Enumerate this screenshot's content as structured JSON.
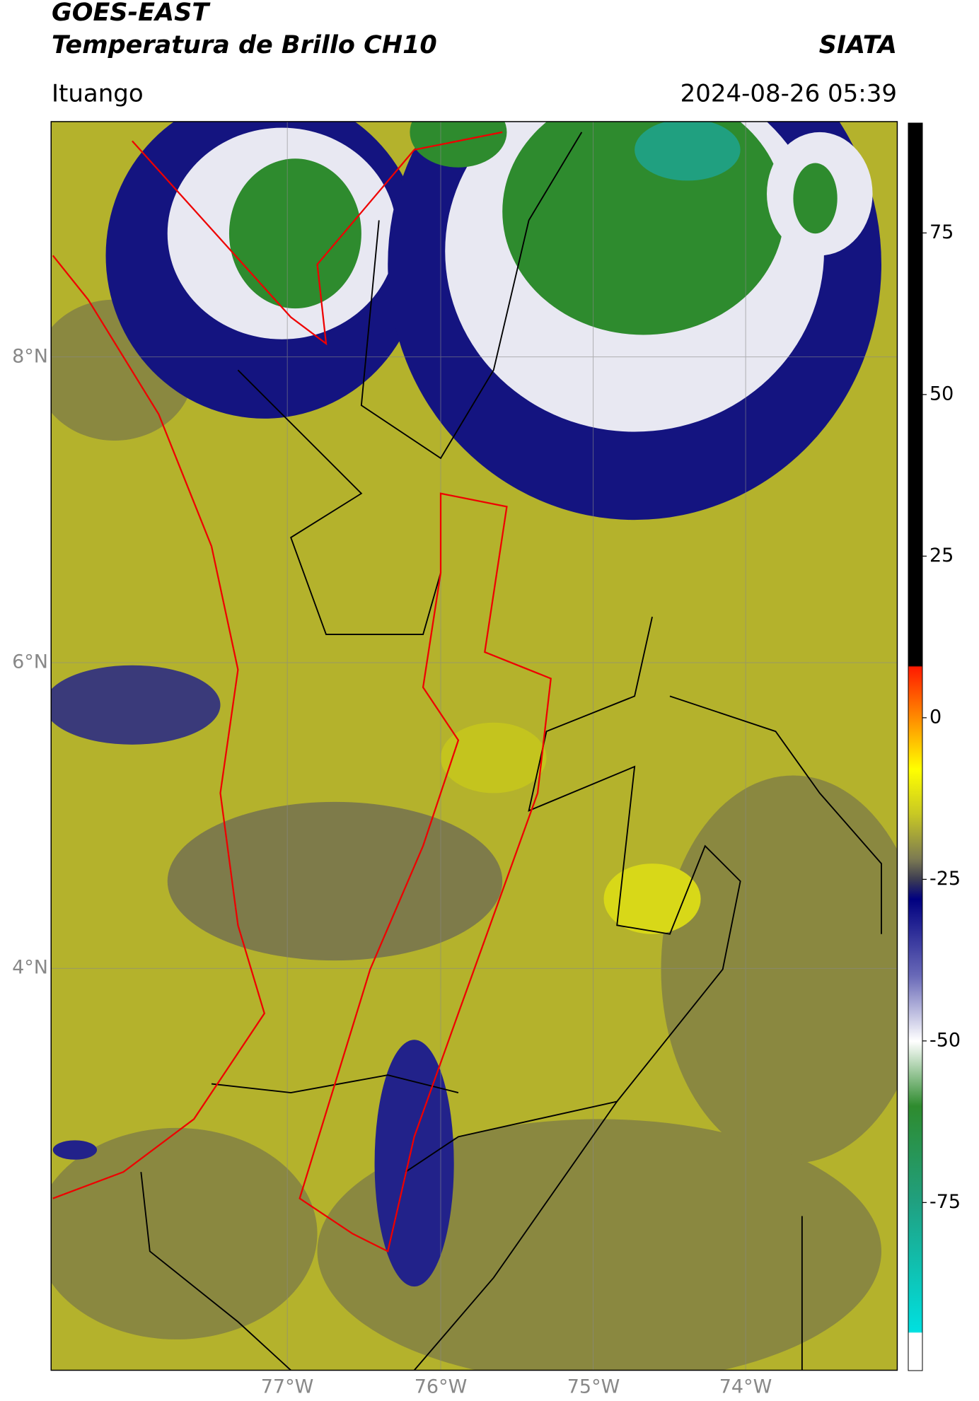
{
  "header": {
    "line1": "GOES-EAST",
    "line2": "Temperatura de Brillo CH10",
    "brand": "SIATA",
    "place": "Ituango",
    "datetime": "2024-08-26 05:39"
  },
  "map": {
    "lat_labels": [
      "8°N",
      "6°N",
      "4°N"
    ],
    "lon_labels": [
      "77°W",
      "76°W",
      "75°W",
      "74°W"
    ]
  },
  "colorbar": {
    "range": [
      -101,
      92
    ],
    "ticks": [
      75,
      50,
      25,
      0,
      -25,
      -50,
      -75
    ]
  }
}
